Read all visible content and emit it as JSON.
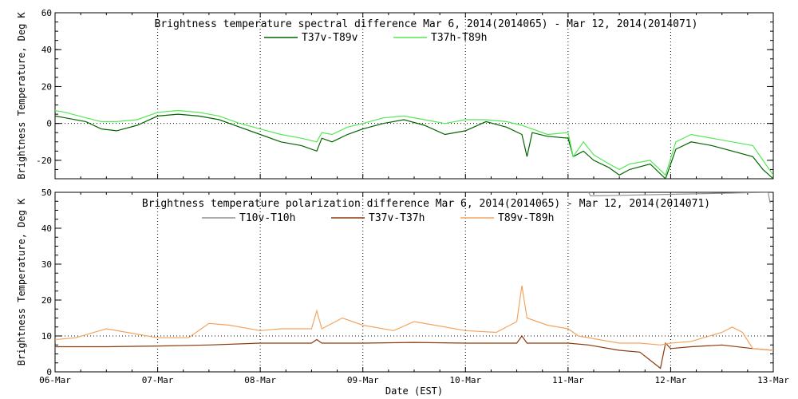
{
  "xlabel": "Date (EST)",
  "x_tick_labels": [
    "06-Mar",
    "07-Mar",
    "08-Mar",
    "09-Mar",
    "10-Mar",
    "11-Mar",
    "12-Mar",
    "13-Mar"
  ],
  "chart_data": [
    {
      "type": "line",
      "title": "Brightness temperature spectral difference     Mar  6, 2014(2014065) - Mar 12, 2014(2014071)",
      "ylabel": "Brightness Temperature, Deg K",
      "xlim": [
        0,
        7
      ],
      "ylim": [
        -30,
        60
      ],
      "yticks": [
        -20,
        0,
        20,
        40,
        60
      ],
      "grid": true,
      "legend": "top-center",
      "series": [
        {
          "name": "T37v-T89v",
          "color": "#006400",
          "x": [
            0,
            0.1,
            0.3,
            0.45,
            0.6,
            0.8,
            1.0,
            1.2,
            1.4,
            1.6,
            1.8,
            2.0,
            2.2,
            2.4,
            2.55,
            2.6,
            2.7,
            2.85,
            3.0,
            3.2,
            3.4,
            3.6,
            3.8,
            4.0,
            4.2,
            4.4,
            4.55,
            4.6,
            4.65,
            4.8,
            5.0,
            5.05,
            5.15,
            5.25,
            5.4,
            5.5,
            5.6,
            5.8,
            5.95,
            6.05,
            6.2,
            6.4,
            6.6,
            6.8,
            6.9,
            7.0
          ],
          "y": [
            4,
            3,
            1,
            -3,
            -4,
            -1,
            4,
            5,
            4,
            2,
            -2,
            -6,
            -10,
            -12,
            -15,
            -8,
            -10,
            -6,
            -3,
            0,
            2,
            -1,
            -6,
            -4,
            1,
            -2,
            -6,
            -18,
            -5,
            -7,
            -8,
            -18,
            -15,
            -20,
            -24,
            -28,
            -25,
            -22,
            -30,
            -14,
            -10,
            -12,
            -15,
            -18,
            -25,
            -30
          ]
        },
        {
          "name": "T37h-T89h",
          "color": "#55e855",
          "x": [
            0,
            0.1,
            0.3,
            0.45,
            0.6,
            0.8,
            1.0,
            1.2,
            1.4,
            1.6,
            1.8,
            2.0,
            2.2,
            2.4,
            2.55,
            2.6,
            2.7,
            2.85,
            3.0,
            3.2,
            3.4,
            3.6,
            3.8,
            4.0,
            4.2,
            4.4,
            4.55,
            4.6,
            4.65,
            4.8,
            5.0,
            5.05,
            5.15,
            5.25,
            5.4,
            5.5,
            5.6,
            5.8,
            5.95,
            6.05,
            6.2,
            6.4,
            6.6,
            6.8,
            6.9,
            7.0
          ],
          "y": [
            7,
            6,
            3,
            1,
            1,
            2,
            6,
            7,
            6,
            4,
            0,
            -3,
            -6,
            -8,
            -10,
            -5,
            -6,
            -2,
            0,
            3,
            4,
            2,
            0,
            2,
            2,
            1,
            -1,
            -2,
            -3,
            -6,
            -5,
            -18,
            -10,
            -17,
            -22,
            -25,
            -22,
            -20,
            -28,
            -10,
            -6,
            -8,
            -10,
            -12,
            -20,
            -28
          ]
        }
      ]
    },
    {
      "type": "line",
      "title": "Brightness temperature polarization difference     Mar  6, 2014(2014065) - Mar 12, 2014(2014071)",
      "ylabel": "Brightness Temperature, Deg K",
      "xlim": [
        0,
        7
      ],
      "ylim": [
        0,
        50
      ],
      "yticks": [
        0,
        10,
        20,
        30,
        40,
        50
      ],
      "grid": true,
      "legend": "top-center",
      "series": [
        {
          "name": "T10v-T10h",
          "color": "#909090",
          "x": [
            5.2,
            5.22,
            6.95,
            6.97
          ],
          "y": [
            50,
            49,
            50,
            47
          ]
        },
        {
          "name": "T37v-T37h",
          "color": "#8b3a0a",
          "x": [
            0,
            0.5,
            1.0,
            1.5,
            2.0,
            2.5,
            2.55,
            2.6,
            3.0,
            3.5,
            4.0,
            4.5,
            4.55,
            4.6,
            5.0,
            5.2,
            5.5,
            5.7,
            5.9,
            5.95,
            6.0,
            6.2,
            6.5,
            6.8,
            7.0
          ],
          "y": [
            7,
            7,
            7.2,
            7.5,
            8,
            8,
            9,
            8,
            8,
            8.2,
            8,
            8,
            10,
            8,
            8,
            7.5,
            6,
            5.5,
            1,
            8,
            6.5,
            7,
            7.5,
            6.5,
            6
          ]
        },
        {
          "name": "T89v-T89h",
          "color": "#f4a460",
          "x": [
            0,
            0.2,
            0.5,
            0.7,
            1.0,
            1.3,
            1.5,
            1.7,
            2.0,
            2.2,
            2.5,
            2.55,
            2.6,
            2.8,
            3.0,
            3.3,
            3.5,
            3.7,
            4.0,
            4.3,
            4.5,
            4.55,
            4.6,
            4.8,
            5.0,
            5.1,
            5.3,
            5.5,
            5.7,
            5.9,
            6.0,
            6.2,
            6.5,
            6.6,
            6.7,
            6.8,
            7.0
          ],
          "y": [
            9,
            9.5,
            12,
            11,
            9.5,
            9.5,
            13.5,
            13,
            11.5,
            12,
            12,
            17,
            12,
            15,
            13,
            11.5,
            14,
            13,
            11.5,
            11,
            14,
            24,
            15,
            13,
            12,
            10,
            9,
            8,
            8,
            7.5,
            8,
            8.5,
            11,
            12.5,
            11,
            6.5,
            6
          ]
        }
      ]
    }
  ]
}
